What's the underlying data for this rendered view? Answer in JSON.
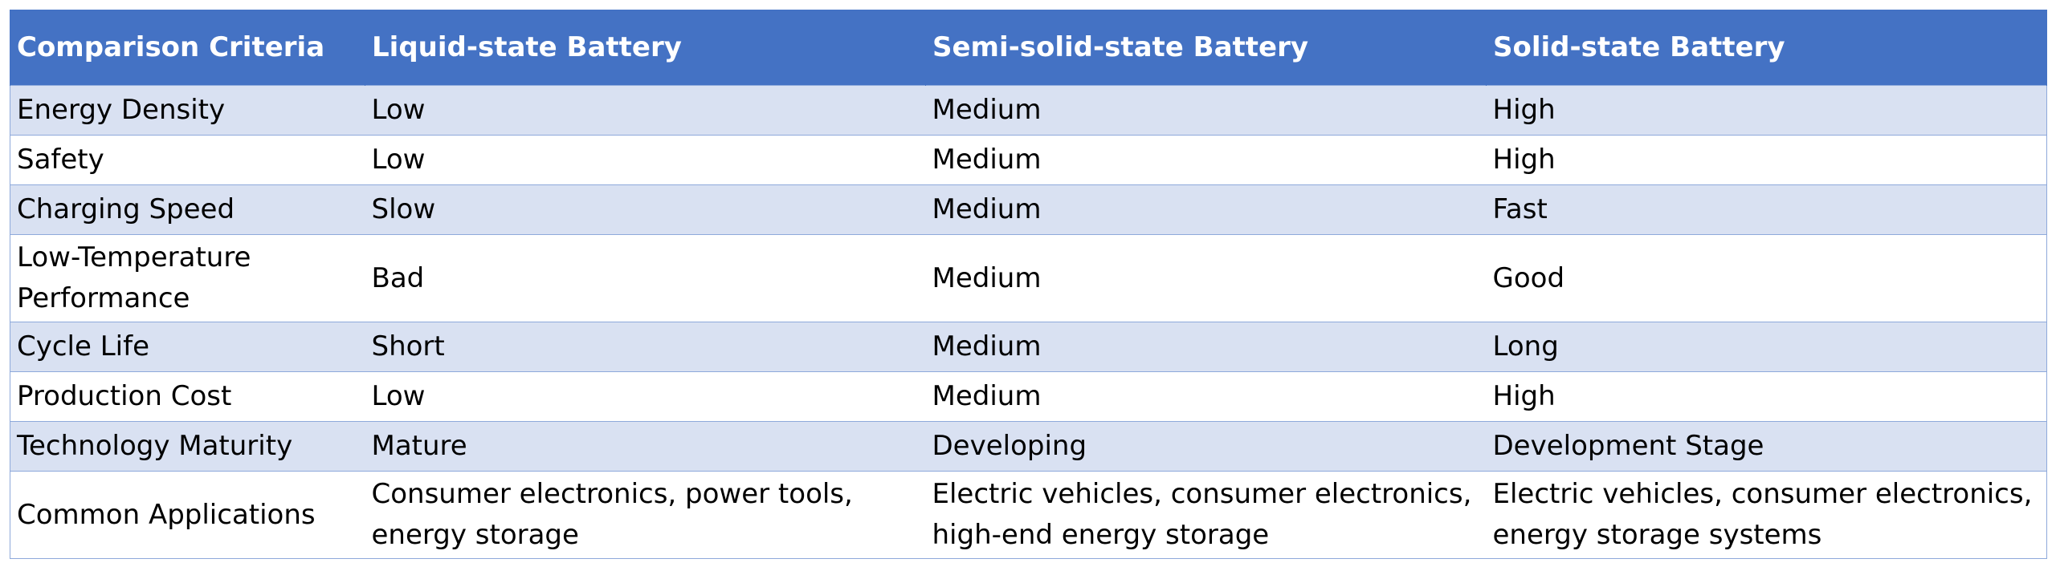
{
  "table": {
    "headers": [
      "Comparison Criteria",
      "Liquid-state Battery",
      "Semi-solid-state Battery",
      "Solid-state Battery"
    ],
    "rows": [
      [
        "Energy Density",
        "Low",
        "Medium",
        "High"
      ],
      [
        "Safety",
        "Low",
        "Medium",
        "High"
      ],
      [
        "Charging Speed",
        "Slow",
        "Medium",
        "Fast"
      ],
      [
        "Low-Temperature Performance",
        "Bad",
        "Medium",
        "Good"
      ],
      [
        "Cycle Life",
        "Short",
        "Medium",
        "Long"
      ],
      [
        "Production Cost",
        "Low",
        "Medium",
        "High"
      ],
      [
        "Technology Maturity",
        "Mature",
        "Developing",
        "Development Stage"
      ],
      [
        "Common Applications",
        "Consumer electronics, power tools, energy storage",
        "Electric vehicles, consumer electronics, high-end energy storage",
        "Electric vehicles, consumer electronics, energy storage systems"
      ]
    ]
  },
  "colors": {
    "header_bg": "#4472C4",
    "header_text": "#FFFFFF",
    "band_bg": "#D9E1F2",
    "border": "#8EA9DB"
  }
}
